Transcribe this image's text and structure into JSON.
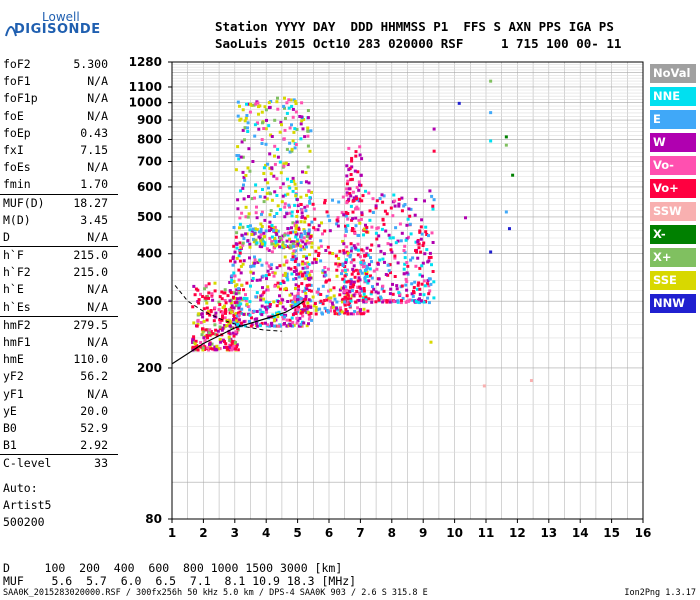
{
  "logo": {
    "line1": "Lowell",
    "line2": "DIGISONDE"
  },
  "header": {
    "line1": "Station YYYY DAY  DDD HHMMSS P1  FFS S AXN PPS IGA PS",
    "line2": "SaoLuis 2015 Oct10 283 020000 RSF     1 715 100 00- 11"
  },
  "params": {
    "group1": [
      {
        "name": "foF2",
        "value": "5.300"
      },
      {
        "name": "foF1",
        "value": "N/A"
      },
      {
        "name": "foF1p",
        "value": "N/A"
      },
      {
        "name": "foE",
        "value": "N/A"
      },
      {
        "name": "foEp",
        "value": "0.43"
      },
      {
        "name": "fxI",
        "value": "7.15"
      },
      {
        "name": "foEs",
        "value": "N/A"
      },
      {
        "name": "fmin",
        "value": "1.70"
      }
    ],
    "group2": [
      {
        "name": "MUF(D)",
        "value": "18.27"
      },
      {
        "name": "M(D)",
        "value": "3.45"
      },
      {
        "name": "D",
        "value": "N/A"
      }
    ],
    "group3": [
      {
        "name": "h`F",
        "value": "215.0"
      },
      {
        "name": "h`F2",
        "value": "215.0"
      },
      {
        "name": "h`E",
        "value": "N/A"
      },
      {
        "name": "h`Es",
        "value": "N/A"
      }
    ],
    "group4": [
      {
        "name": "hmF2",
        "value": "279.5"
      },
      {
        "name": "hmF1",
        "value": "N/A"
      },
      {
        "name": "hmE",
        "value": "110.0"
      },
      {
        "name": "yF2",
        "value": "56.2"
      },
      {
        "name": "yF1",
        "value": "N/A"
      },
      {
        "name": "yE",
        "value": "20.0"
      },
      {
        "name": "B0",
        "value": "52.9"
      },
      {
        "name": "B1",
        "value": "2.92"
      }
    ],
    "group5": [
      {
        "name": "C-level",
        "value": "33"
      }
    ]
  },
  "auto": {
    "line1": "Auto:",
    "line2": "Artist5",
    "line3": "500200"
  },
  "legend": [
    {
      "label": "NoVal",
      "color": "#a0a0a0"
    },
    {
      "label": "NNE",
      "color": "#00e0f0"
    },
    {
      "label": "E",
      "color": "#40a8f8"
    },
    {
      "label": "W",
      "color": "#b000b0"
    },
    {
      "label": "Vo-",
      "color": "#ff50b0"
    },
    {
      "label": "Vo+",
      "color": "#ff0040"
    },
    {
      "label": "SSW",
      "color": "#f8b0b0"
    },
    {
      "label": "X-",
      "color": "#008000"
    },
    {
      "label": "X+",
      "color": "#80c060"
    },
    {
      "label": "SSE",
      "color": "#d8d800"
    },
    {
      "label": "NNW",
      "color": "#2020d0"
    }
  ],
  "dmuf": {
    "line1": "D     100  200  400  600  800 1000 1500 3000 [km]",
    "line2": "MUF    5.6  5.7  6.0  6.5  7.1  8.1 10.9 18.3 [MHz]"
  },
  "footer": {
    "text": "SAA0K_2015283020000.RSF / 300fx256h 50 kHz 5.0 km / DPS-4 SAA0K 903 / 2.6 S 315.8 E",
    "version": "Ion2Png 1.3.17"
  },
  "chart_data": {
    "type": "scatter",
    "title": "",
    "xlabel": "",
    "ylabel": "",
    "xlim": [
      1,
      16
    ],
    "ylim": [
      80,
      1280
    ],
    "y_scale": "log",
    "x_ticks": [
      1,
      2,
      3,
      4,
      5,
      6,
      7,
      8,
      9,
      10,
      11,
      12,
      13,
      14,
      15,
      16
    ],
    "y_ticks": [
      80,
      200,
      300,
      400,
      500,
      600,
      700,
      800,
      900,
      1000,
      1100,
      1280
    ],
    "grid": true,
    "echo_regions": [
      {
        "x_range": [
          1.5,
          3.2
        ],
        "y_range": [
          220,
          360
        ],
        "dominant": "Vo+"
      },
      {
        "x_range": [
          3.0,
          5.5
        ],
        "y_range": [
          250,
          1050
        ],
        "dominant": "W/SSE"
      },
      {
        "x_range": [
          5.0,
          9.3
        ],
        "y_range": [
          280,
          800
        ],
        "dominant": "Vo+/W"
      }
    ],
    "profile_curve": {
      "name": "",
      "points": [
        [
          1,
          205
        ],
        [
          2,
          232
        ],
        [
          3,
          255
        ],
        [
          4,
          270
        ],
        [
          4.6,
          280
        ],
        [
          5.0,
          292
        ],
        [
          5.2,
          300
        ]
      ]
    }
  }
}
